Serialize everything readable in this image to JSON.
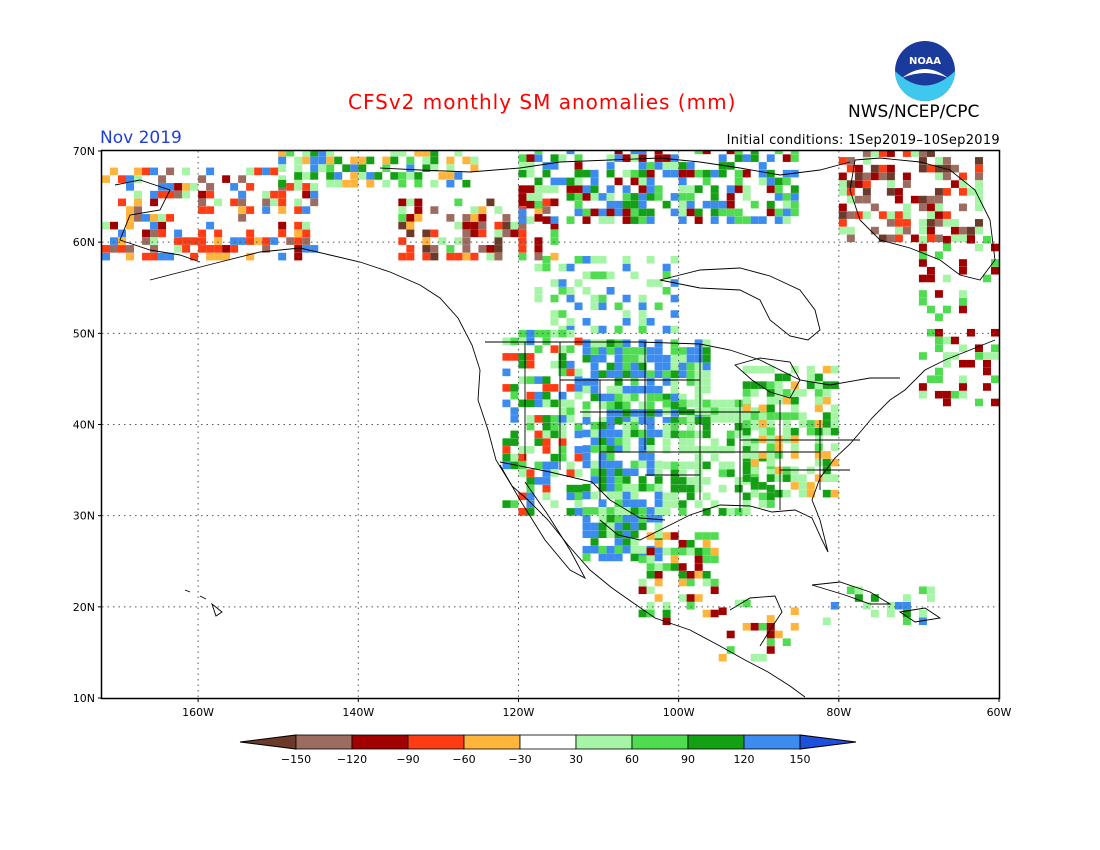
{
  "title": "CFSv2 monthly SM anomalies (mm)",
  "agency": "NWS/NCEP/CPC",
  "logo_text": "NOAA",
  "month_label": "Nov 2019",
  "initial_conditions": "Initial conditions: 1Sep2019–10Sep2019",
  "map": {
    "lon_range": [
      -172,
      -60
    ],
    "lat_range": [
      10,
      70
    ],
    "lat_labels": [
      "10N",
      "20N",
      "30N",
      "40N",
      "50N",
      "60N",
      "70N"
    ],
    "lat_values": [
      10,
      20,
      30,
      40,
      50,
      60,
      70
    ],
    "lon_labels": [
      "160W",
      "140W",
      "120W",
      "100W",
      "80W",
      "60W"
    ],
    "lon_values": [
      -160,
      -140,
      -120,
      -100,
      -80,
      -60
    ],
    "grid": "dotted"
  },
  "colorbar": {
    "labels": [
      "−150",
      "−120",
      "−90",
      "−60",
      "−30",
      "30",
      "60",
      "90",
      "120",
      "150"
    ],
    "colors": [
      "#6b3a2a",
      "#9c6c60",
      "#a00000",
      "#ff3c14",
      "#ffb43c",
      "#ffffff",
      "#a6f5a6",
      "#50dc50",
      "#14a014",
      "#3c8cf0",
      "#1e50dc"
    ]
  },
  "colors": {
    "title": "#ff0000",
    "month": "#1f3fd8"
  }
}
